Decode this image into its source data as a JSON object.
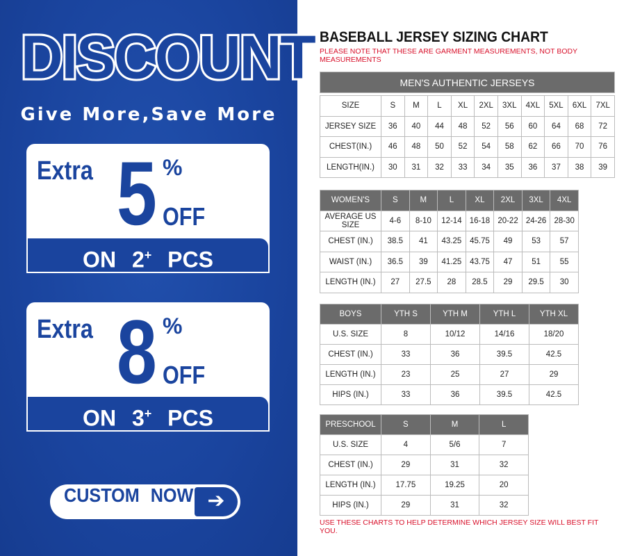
{
  "colors": {
    "brand_blue": "#1a449e",
    "note_red": "#d8102a",
    "header_gray": "#6b6b6b"
  },
  "promo": {
    "headline": "DISCOUNT",
    "tagline": "Give More,Save More",
    "offers": [
      {
        "extra": "Extra",
        "number": "5",
        "percent": "%",
        "off": "OFF",
        "on": "ON",
        "qty": "2",
        "plus": "+",
        "pcs": "PCS"
      },
      {
        "extra": "Extra",
        "number": "8",
        "percent": "%",
        "off": "OFF",
        "on": "ON",
        "qty": "3",
        "plus": "+",
        "pcs": "PCS"
      }
    ],
    "button": {
      "label": "CUSTOM NOW",
      "icon": "arrow-right-icon",
      "arrow": "➔"
    }
  },
  "chart": {
    "title": "BASEBALL JERSEY SIZING CHART",
    "note": "PLEASE NOTE THAT THESE ARE GARMENT MEASUREMENTS, NOT BODY MEASUREMENTS",
    "footer": "USE THESE CHARTS TO HELP DETERMINE WHICH JERSEY SIZE WILL BEST FIT YOU.",
    "tables": [
      {
        "id": "mens",
        "caption": "MEN'S AUTHENTIC JERSEYS",
        "header_gray": false,
        "header": [
          "SIZE",
          "S",
          "M",
          "L",
          "XL",
          "2XL",
          "3XL",
          "4XL",
          "5XL",
          "6XL",
          "7XL"
        ],
        "rows": [
          [
            "JERSEY SIZE",
            "36",
            "40",
            "44",
            "48",
            "52",
            "56",
            "60",
            "64",
            "68",
            "72"
          ],
          [
            "CHEST(IN.)",
            "46",
            "48",
            "50",
            "52",
            "54",
            "58",
            "62",
            "66",
            "70",
            "76"
          ],
          [
            "LENGTH(IN.)",
            "30",
            "31",
            "32",
            "33",
            "34",
            "35",
            "36",
            "37",
            "38",
            "39"
          ]
        ]
      },
      {
        "id": "womens",
        "header_gray": true,
        "header": [
          "WOMEN'S",
          "S",
          "M",
          "L",
          "XL",
          "2XL",
          "3XL",
          "4XL"
        ],
        "rows": [
          [
            "AVERAGE US SIZE",
            "4-6",
            "8-10",
            "12-14",
            "16-18",
            "20-22",
            "24-26",
            "28-30"
          ],
          [
            "CHEST (IN.)",
            "38.5",
            "41",
            "43.25",
            "45.75",
            "49",
            "53",
            "57"
          ],
          [
            "WAIST (IN.)",
            "36.5",
            "39",
            "41.25",
            "43.75",
            "47",
            "51",
            "55"
          ],
          [
            "LENGTH (IN.)",
            "27",
            "27.5",
            "28",
            "28.5",
            "29",
            "29.5",
            "30"
          ]
        ]
      },
      {
        "id": "boys",
        "header_gray": true,
        "header": [
          "BOYS",
          "YTH S",
          "YTH M",
          "YTH L",
          "YTH XL"
        ],
        "rows": [
          [
            "U.S. SIZE",
            "8",
            "10/12",
            "14/16",
            "18/20"
          ],
          [
            "CHEST (IN.)",
            "33",
            "36",
            "39.5",
            "42.5"
          ],
          [
            "LENGTH (IN.)",
            "23",
            "25",
            "27",
            "29"
          ],
          [
            "HIPS (IN.)",
            "33",
            "36",
            "39.5",
            "42.5"
          ]
        ]
      },
      {
        "id": "preschool",
        "header_gray": true,
        "header": [
          "PRESCHOOL",
          "S",
          "M",
          "L"
        ],
        "rows": [
          [
            "U.S. SIZE",
            "4",
            "5/6",
            "7"
          ],
          [
            "CHEST (IN.)",
            "29",
            "31",
            "32"
          ],
          [
            "LENGTH (IN.)",
            "17.75",
            "19.25",
            "20"
          ],
          [
            "HIPS (IN.)",
            "29",
            "31",
            "32"
          ]
        ]
      }
    ]
  }
}
